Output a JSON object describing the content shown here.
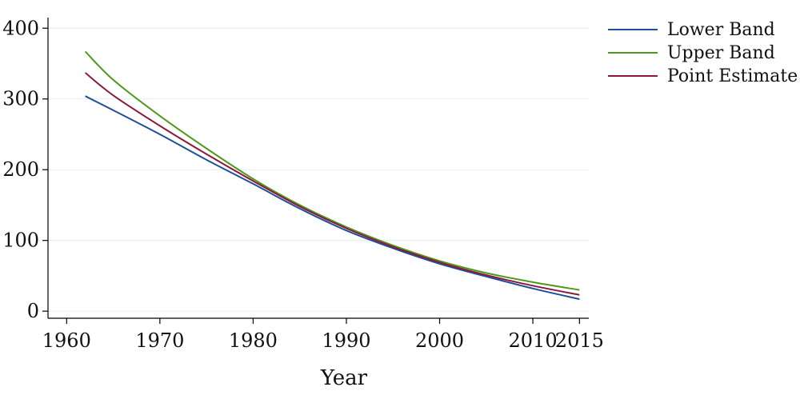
{
  "chart_data": {
    "type": "line",
    "xlabel": "Year",
    "ylabel": "",
    "xlim": [
      1958,
      2016
    ],
    "ylim": [
      -10,
      415
    ],
    "xticks": [
      1960,
      1970,
      1980,
      1990,
      2000,
      2010,
      2015
    ],
    "yticks": [
      0,
      100,
      200,
      300,
      400
    ],
    "grid": true,
    "legend_position": "top-right, outside plot",
    "series": [
      {
        "name": "Lower Band",
        "color": "#1f4e9a",
        "x": [
          1962,
          1965,
          1970,
          1975,
          1980,
          1985,
          1990,
          1995,
          2000,
          2005,
          2010,
          2015
        ],
        "y": [
          304,
          284,
          250,
          214,
          180,
          145,
          114,
          89,
          67,
          49,
          32,
          17
        ]
      },
      {
        "name": "Upper Band",
        "color": "#4d9a1a",
        "x": [
          1962,
          1965,
          1970,
          1975,
          1980,
          1985,
          1990,
          1995,
          2000,
          2005,
          2010,
          2015
        ],
        "y": [
          367,
          327,
          276,
          230,
          187,
          150,
          119,
          93,
          71,
          54,
          41,
          30
        ]
      },
      {
        "name": "Point Estimate",
        "color": "#8b1a3a",
        "x": [
          1962,
          1965,
          1970,
          1975,
          1980,
          1985,
          1990,
          1995,
          2000,
          2005,
          2010,
          2015
        ],
        "y": [
          337,
          305,
          262,
          222,
          184,
          148,
          117,
          91,
          69,
          51,
          36,
          23
        ]
      }
    ]
  }
}
